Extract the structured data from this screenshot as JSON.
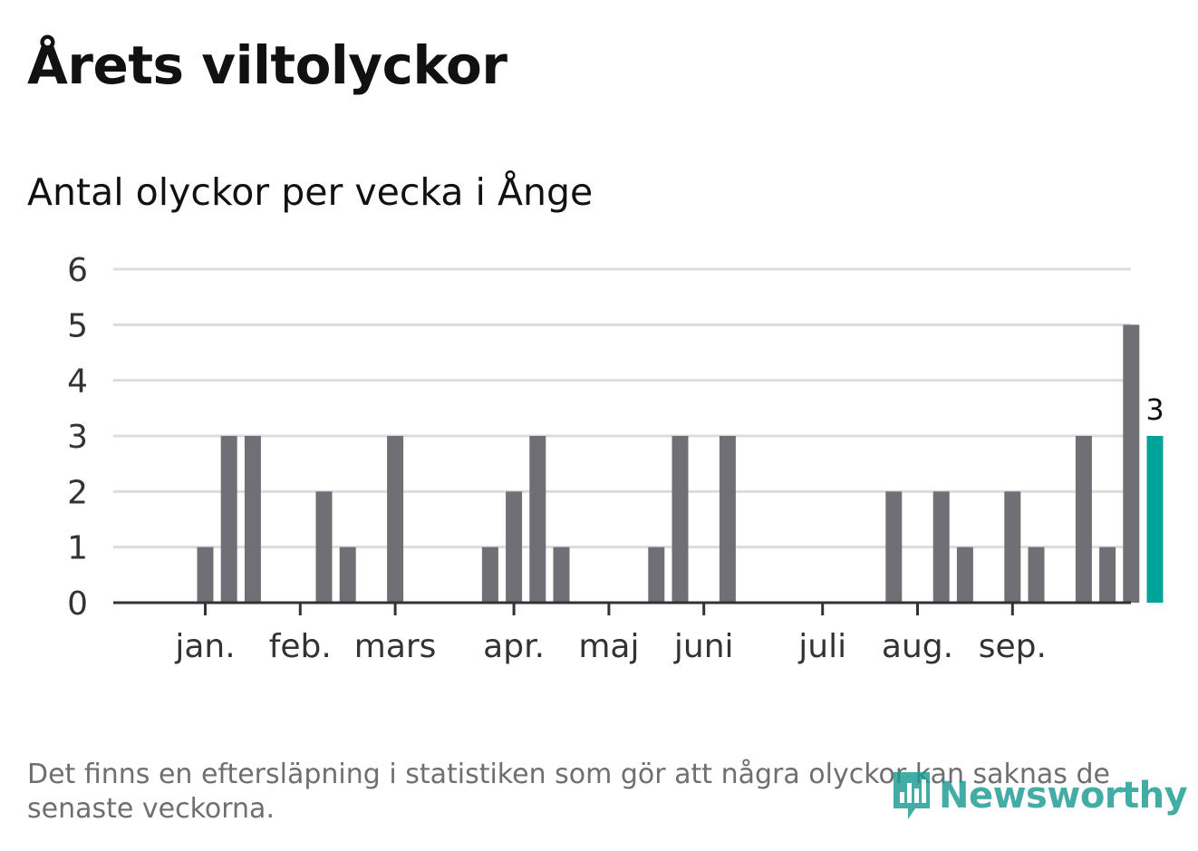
{
  "header": {
    "title": "Årets viltolyckor",
    "subtitle": "Antal olyckor per vecka i Ånge"
  },
  "footnote": "Det finns en eftersläpning i statistiken som gör att några olyckor kan saknas de senaste veckorna.",
  "brand": {
    "name": "Newsworthy",
    "icon": "bar-chart-speech-bubble-icon",
    "color": "#1a9a92"
  },
  "colors": {
    "bar": "#6f6f75",
    "highlight": "#00a39a",
    "grid": "#dcdcdc",
    "axis": "#333333"
  },
  "chart_data": {
    "type": "bar",
    "x_unit": "week",
    "weeks": [
      1,
      2,
      3,
      4,
      5,
      6,
      7,
      8,
      9,
      10,
      11,
      12,
      13,
      14,
      15,
      16,
      17,
      18,
      19,
      20,
      21,
      22,
      23,
      24,
      25,
      26,
      27,
      28,
      29,
      30,
      31,
      32,
      33,
      34,
      35,
      36,
      37,
      38,
      39,
      40,
      41,
      42,
      43
    ],
    "values": [
      0,
      0,
      1,
      3,
      3,
      0,
      0,
      2,
      1,
      0,
      3,
      0,
      0,
      0,
      1,
      2,
      3,
      1,
      0,
      0,
      0,
      1,
      3,
      0,
      3,
      0,
      0,
      0,
      0,
      0,
      0,
      2,
      0,
      2,
      1,
      0,
      2,
      1,
      0,
      3,
      1,
      5,
      3
    ],
    "highlight_week": 43,
    "highlight_label": "3",
    "ylim": [
      0,
      6
    ],
    "yticks": [
      0,
      1,
      2,
      3,
      4,
      5,
      6
    ],
    "month_ticks": [
      {
        "label": "jan.",
        "week": 3.5
      },
      {
        "label": "feb.",
        "week": 7.5
      },
      {
        "label": "mars",
        "week": 11.5
      },
      {
        "label": "apr.",
        "week": 16.5
      },
      {
        "label": "maj",
        "week": 20.5
      },
      {
        "label": "juni",
        "week": 24.5
      },
      {
        "label": "juli",
        "week": 29.5
      },
      {
        "label": "aug.",
        "week": 33.5
      },
      {
        "label": "sep.",
        "week": 37.5
      }
    ],
    "grid": true,
    "legend": "none"
  }
}
